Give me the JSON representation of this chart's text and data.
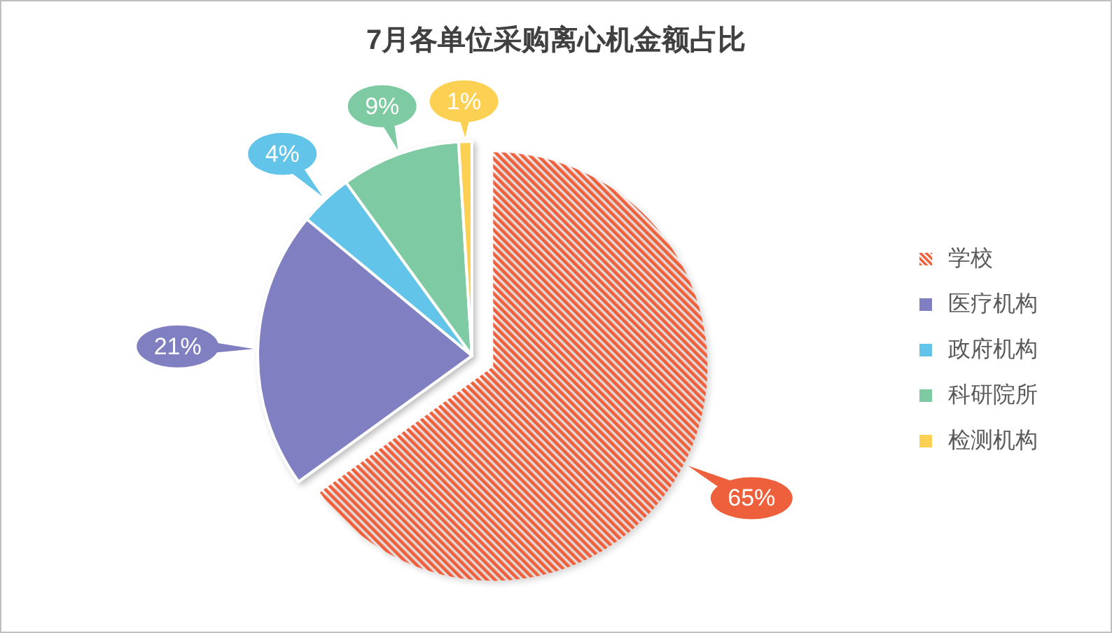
{
  "chart_data": {
    "type": "pie",
    "title": "7月各单位采购离心机金额占比",
    "categories": [
      "学校",
      "医疗机构",
      "政府机构",
      "科研院所",
      "检测机构"
    ],
    "values": [
      65,
      21,
      4,
      9,
      1
    ],
    "value_labels": [
      "65%",
      "21%",
      "4%",
      "9%",
      "1%"
    ],
    "colors": [
      "#ee5f3b",
      "#7f7fc2",
      "#62c4e9",
      "#7ecaa2",
      "#fcd053"
    ],
    "legend": "right"
  }
}
